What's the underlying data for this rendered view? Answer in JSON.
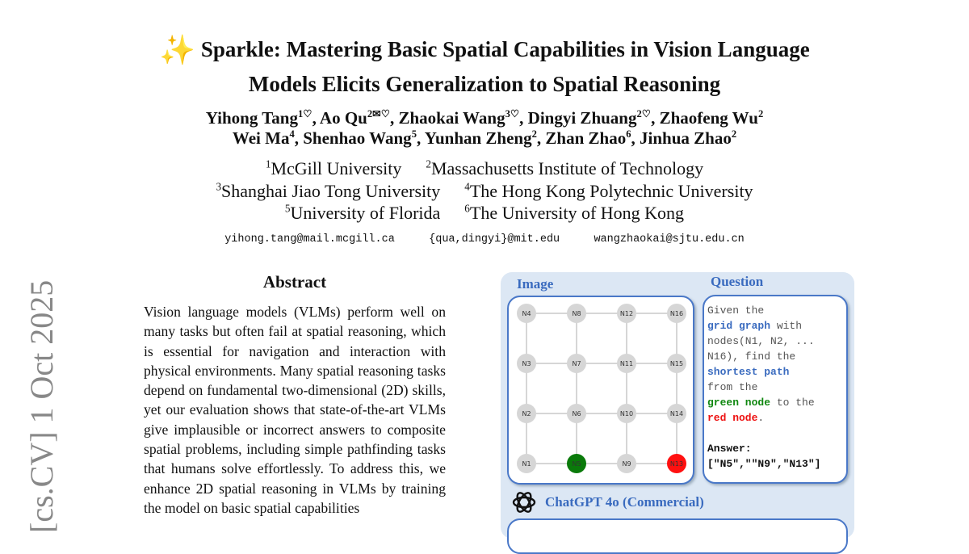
{
  "stamp": "[cs.CV]  1 Oct 2025",
  "title": {
    "emoji": "✨",
    "line1": "Sparkle: Mastering Basic Spatial Capabilities in Vision Language",
    "line2": "Models Elicits Generalization to Spatial Reasoning"
  },
  "authors": [
    [
      {
        "name": "Yihong Tang",
        "sup": "1♡"
      },
      {
        "name": "Ao Qu",
        "sup": "2✉♡"
      },
      {
        "name": "Zhaokai Wang",
        "sup": "3♡"
      },
      {
        "name": "Dingyi Zhuang",
        "sup": "2♡"
      },
      {
        "name": "Zhaofeng Wu",
        "sup": "2"
      }
    ],
    [
      {
        "name": "Wei Ma",
        "sup": "4"
      },
      {
        "name": "Shenhao Wang",
        "sup": "5"
      },
      {
        "name": "Yunhan Zheng",
        "sup": "2"
      },
      {
        "name": "Zhan Zhao",
        "sup": "6"
      },
      {
        "name": "Jinhua Zhao",
        "sup": "2"
      }
    ]
  ],
  "affiliations": [
    [
      {
        "sup": "1",
        "name": "McGill University"
      },
      {
        "sup": "2",
        "name": "Massachusetts Institute of Technology"
      }
    ],
    [
      {
        "sup": "3",
        "name": "Shanghai Jiao Tong University"
      },
      {
        "sup": "4",
        "name": "The Hong Kong Polytechnic University"
      }
    ],
    [
      {
        "sup": "5",
        "name": "University of Florida"
      },
      {
        "sup": "6",
        "name": "The University of Hong Kong"
      }
    ]
  ],
  "emails": "yihong.tang@mail.mcgill.ca   {qua,dingyi}@mit.edu   wangzhaokai@sjtu.edu.cn",
  "abstract": {
    "heading": "Abstract",
    "body": "Vision language models (VLMs) perform well on many tasks but often fail at spatial reasoning, which is essential for navigation and interaction with physical environments. Many spatial reasoning tasks depend on fundamental two-dimensional (2D) skills, yet our evaluation shows that state-of-the-art VLMs give implausible or incorrect answers to composite spatial problems, including simple pathfinding tasks that humans solve effortlessly. To address this, we enhance 2D spatial reasoning in VLMs by training the model on basic spatial capabilities"
  },
  "figure": {
    "image_label": "Image",
    "question_label": "Question",
    "nodes": [
      [
        "N4",
        "N8",
        "N12",
        "N16"
      ],
      [
        "N3",
        "N7",
        "N11",
        "N15"
      ],
      [
        "N2",
        "N6",
        "N10",
        "N14"
      ],
      [
        "N1",
        "N5",
        "N9",
        "N13"
      ]
    ],
    "start_node": "N5",
    "end_node": "N13",
    "colors": {
      "start": "#0a7a0a",
      "end": "#ff1010",
      "node": "#d6d6d6",
      "accent": "#3a6bbf"
    },
    "question": {
      "p1": "Given the\n",
      "grid_graph": "grid graph",
      "p2": " with\nnodes(N1, N2, ...\nN16), find the\n",
      "shortest_path": "shortest path",
      "p3": "\nfrom the\n",
      "green_node": "green node",
      "p4": " to the\n",
      "red_node": "red node",
      "p5": ".\n\n",
      "answer_label": "Answer:",
      "answer": "[\"N5\",\"\"N9\",\"N13\"]"
    },
    "model_label": "ChatGPT 4o (Commercial)",
    "model_icon": "openai-logo-icon"
  }
}
